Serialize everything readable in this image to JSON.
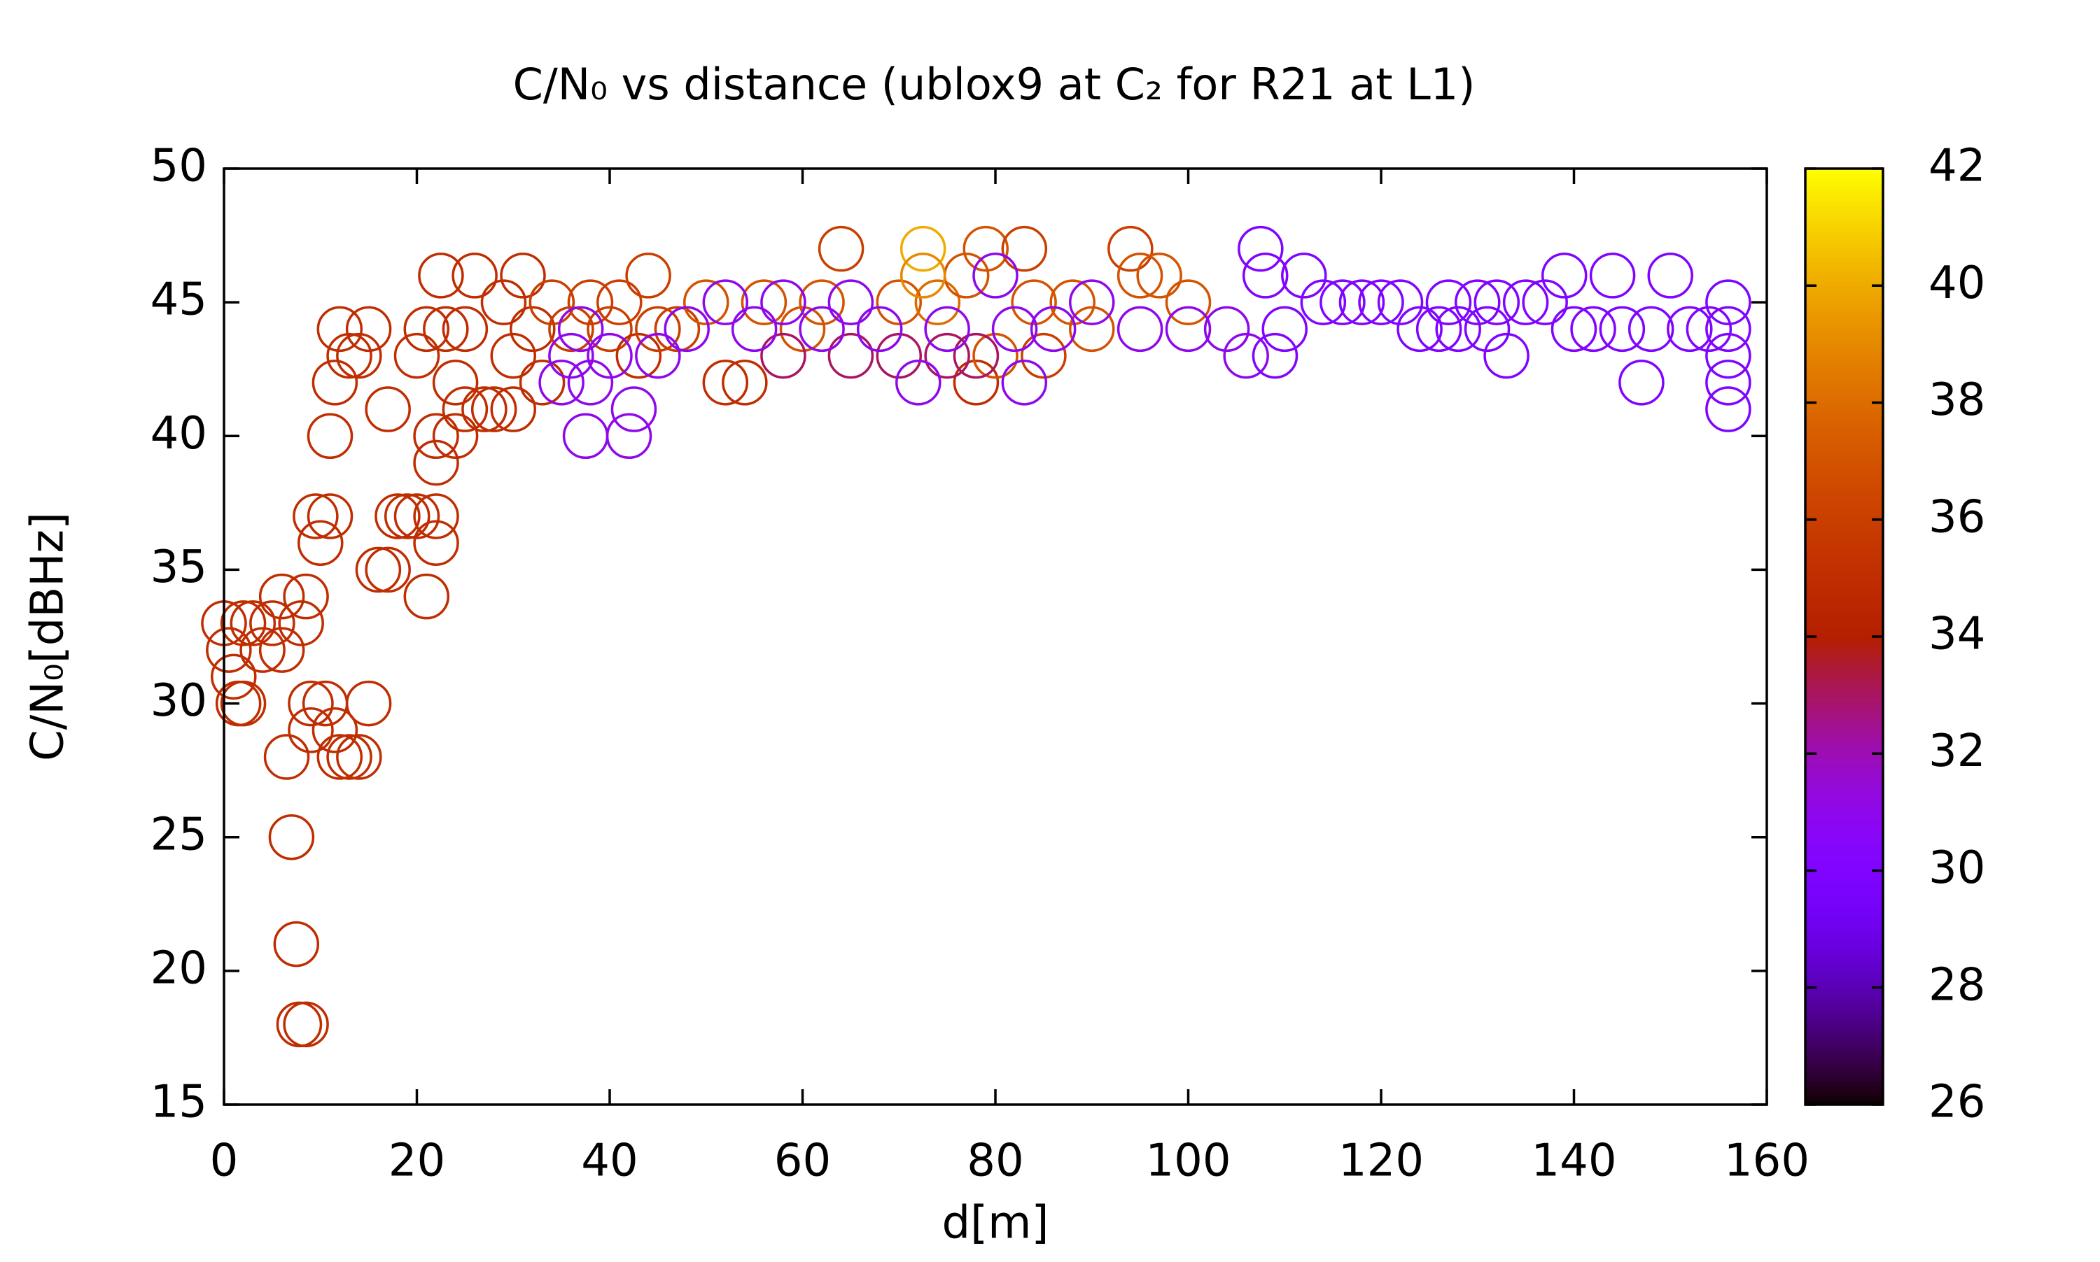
{
  "chart_data": {
    "type": "scatter",
    "title": "C/N₀ vs distance (ublox9 at C₂ for R21 at L1)",
    "xlabel": "d[m]",
    "ylabel": "C/N₀[dBHz]",
    "xlim": [
      0,
      160
    ],
    "ylim": [
      15,
      50
    ],
    "xticks": [
      0,
      20,
      40,
      60,
      80,
      100,
      120,
      140,
      160
    ],
    "yticks": [
      15,
      20,
      25,
      30,
      35,
      40,
      45,
      50
    ],
    "cblim": [
      26,
      42
    ],
    "cbticks": [
      26,
      28,
      30,
      32,
      34,
      36,
      38,
      40,
      42
    ],
    "x": [
      0,
      0.5,
      1,
      1.5,
      2,
      2,
      3,
      4,
      5,
      6,
      6,
      6.5,
      7,
      7.5,
      7.8,
      8.5,
      8,
      8.5,
      9,
      9,
      9.5,
      10,
      10.5,
      11,
      11.5,
      12,
      13,
      14,
      15,
      11,
      11.5,
      12,
      13,
      14,
      15,
      16,
      17,
      17,
      18,
      19,
      20,
      20,
      21,
      21,
      22,
      22,
      22,
      22,
      22.5,
      23,
      24,
      24,
      25,
      25,
      26,
      27,
      28,
      29,
      30,
      30,
      31,
      32,
      33,
      34,
      36,
      38,
      40,
      41,
      43,
      44,
      45,
      47,
      50,
      52,
      54,
      56,
      60,
      62,
      64,
      70,
      74,
      77,
      78,
      79,
      80,
      83,
      84,
      85,
      88,
      90,
      94,
      95,
      97,
      100,
      72.5,
      72.5,
      58,
      65,
      70,
      75,
      78,
      35,
      36,
      37,
      37.5,
      38,
      40,
      42,
      42.5,
      45,
      48,
      52,
      55,
      58,
      62,
      65,
      68,
      72,
      75,
      80,
      82,
      83,
      86,
      90,
      95,
      100,
      104,
      106,
      107.5,
      108,
      109,
      110,
      112,
      114,
      116,
      118,
      120,
      122,
      124,
      126,
      127,
      128,
      130,
      131,
      132,
      133,
      135,
      137,
      139,
      140,
      142,
      144,
      145,
      147,
      148,
      150,
      152,
      154,
      156,
      156,
      156,
      156,
      156
    ],
    "y": [
      33,
      32,
      31,
      30,
      30,
      33,
      33,
      32,
      33,
      34,
      32,
      28,
      25,
      21,
      18,
      18,
      33,
      34,
      30,
      29,
      37,
      36,
      30,
      37,
      29,
      28,
      28,
      28,
      30,
      40,
      42,
      44,
      43,
      43,
      44,
      35,
      35,
      41,
      37,
      37,
      37,
      43,
      34,
      44,
      36,
      37,
      39,
      40,
      46,
      44,
      42,
      40,
      41,
      44,
      46,
      41,
      41,
      45,
      41,
      43,
      46,
      44,
      42,
      45,
      44,
      45,
      44,
      45,
      43,
      46,
      44,
      44,
      45,
      42,
      42,
      45,
      44,
      45,
      47,
      45,
      45,
      46,
      42,
      47,
      43,
      47,
      45,
      43,
      45,
      44,
      47,
      46,
      46,
      45,
      47,
      46,
      43,
      43,
      43,
      43,
      43,
      42,
      43,
      44,
      40,
      42,
      43,
      40,
      41,
      43,
      44,
      45,
      44,
      45,
      44,
      45,
      44,
      42,
      44,
      46,
      44,
      42,
      44,
      45,
      44,
      44,
      44,
      43,
      47,
      46,
      43,
      44,
      46,
      45,
      45,
      45,
      45,
      45,
      44,
      44,
      45,
      44,
      45,
      44,
      45,
      43,
      45,
      45,
      46,
      44,
      44,
      46,
      44,
      42,
      44,
      46,
      44,
      44,
      45,
      43,
      42,
      41,
      44
    ],
    "c": [
      35,
      35,
      35,
      35,
      35,
      35,
      35,
      35,
      35,
      35,
      35,
      35,
      35,
      35,
      35,
      35,
      35,
      35,
      35,
      35,
      35,
      35,
      35,
      35,
      35,
      35,
      35,
      35,
      35,
      35,
      35,
      35,
      35,
      35,
      35,
      35,
      35,
      35,
      35,
      35,
      35,
      35,
      35,
      35,
      35,
      35,
      35,
      35,
      35,
      35,
      35,
      35,
      35,
      35,
      35,
      35,
      35,
      35,
      35,
      35,
      35,
      35,
      35,
      36,
      36,
      36,
      36,
      36,
      35,
      36,
      36,
      36,
      37,
      35,
      35,
      37,
      37,
      37,
      36,
      37,
      38,
      37,
      35,
      37,
      37,
      36,
      37,
      36,
      37,
      37,
      36,
      37,
      37,
      37,
      40,
      39,
      33,
      33,
      33,
      33,
      33,
      31,
      31,
      31,
      31,
      31,
      31,
      31,
      31,
      31,
      31,
      31,
      31,
      31,
      31,
      31,
      31,
      31,
      31,
      31,
      31,
      31,
      31,
      31,
      31,
      31,
      31,
      31,
      30,
      30,
      30,
      30,
      30,
      30,
      30,
      30,
      30,
      30,
      30,
      30,
      30,
      30,
      30,
      30,
      30,
      30,
      30,
      30,
      30,
      30,
      30,
      30,
      30,
      30,
      30,
      30,
      30,
      30,
      30,
      30,
      30,
      30,
      30
    ]
  }
}
